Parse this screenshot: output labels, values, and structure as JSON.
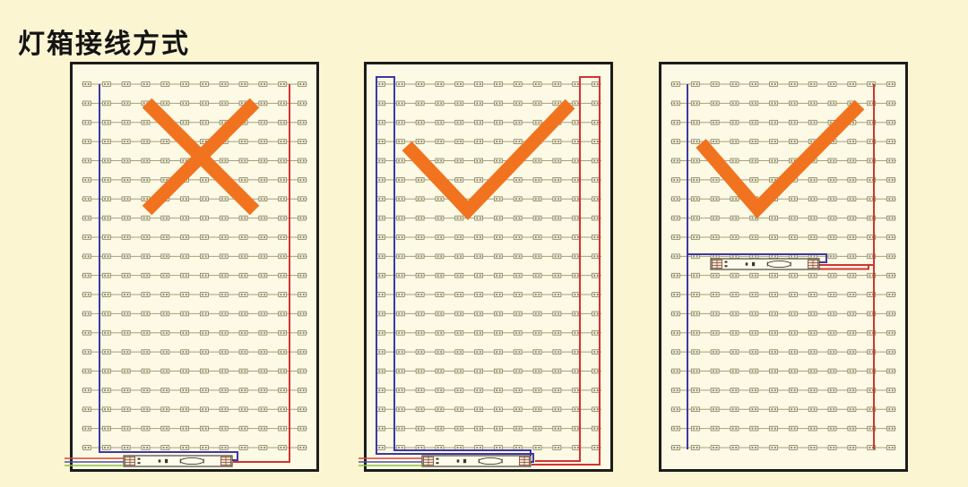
{
  "page": {
    "title": "灯箱接线方式",
    "background": "#FBF5D2"
  },
  "colors": {
    "panel_bg": "#FCF9E5",
    "panel_border": "#1C1C1C",
    "blue_wire": "#3D38A6",
    "red_wire": "#D23430",
    "mains_red": "#D6453A",
    "mains_blue": "#4A4FAE",
    "mains_green": "#8CC43F",
    "orange_mark": "#F1731F",
    "strip_line": "#A59F85",
    "module_fill": "#F6F1DA",
    "module_border": "#85805F",
    "psu_body": "#FDFBEC",
    "psu_line": "#3B382A",
    "psu_terminal": "#7D3C30"
  },
  "panels": [
    {
      "name": "panel-1",
      "verdict": "wrong",
      "verdict_icon": "cross-mark-icon",
      "wiring_layout": "single-feed-psu-bottom",
      "led_rows": 20,
      "modules_per_row": 12,
      "psu_position": "bottom",
      "mains_input": true
    },
    {
      "name": "panel-2",
      "verdict": "correct",
      "verdict_icon": "check-mark-icon",
      "wiring_layout": "loop-feed-psu-bottom",
      "led_rows": 20,
      "modules_per_row": 12,
      "psu_position": "bottom",
      "mains_input": true
    },
    {
      "name": "panel-3",
      "verdict": "correct",
      "verdict_icon": "check-mark-icon",
      "wiring_layout": "single-feed-psu-middle",
      "led_rows": 20,
      "modules_per_row": 12,
      "psu_position": "middle",
      "mains_input": false
    }
  ]
}
